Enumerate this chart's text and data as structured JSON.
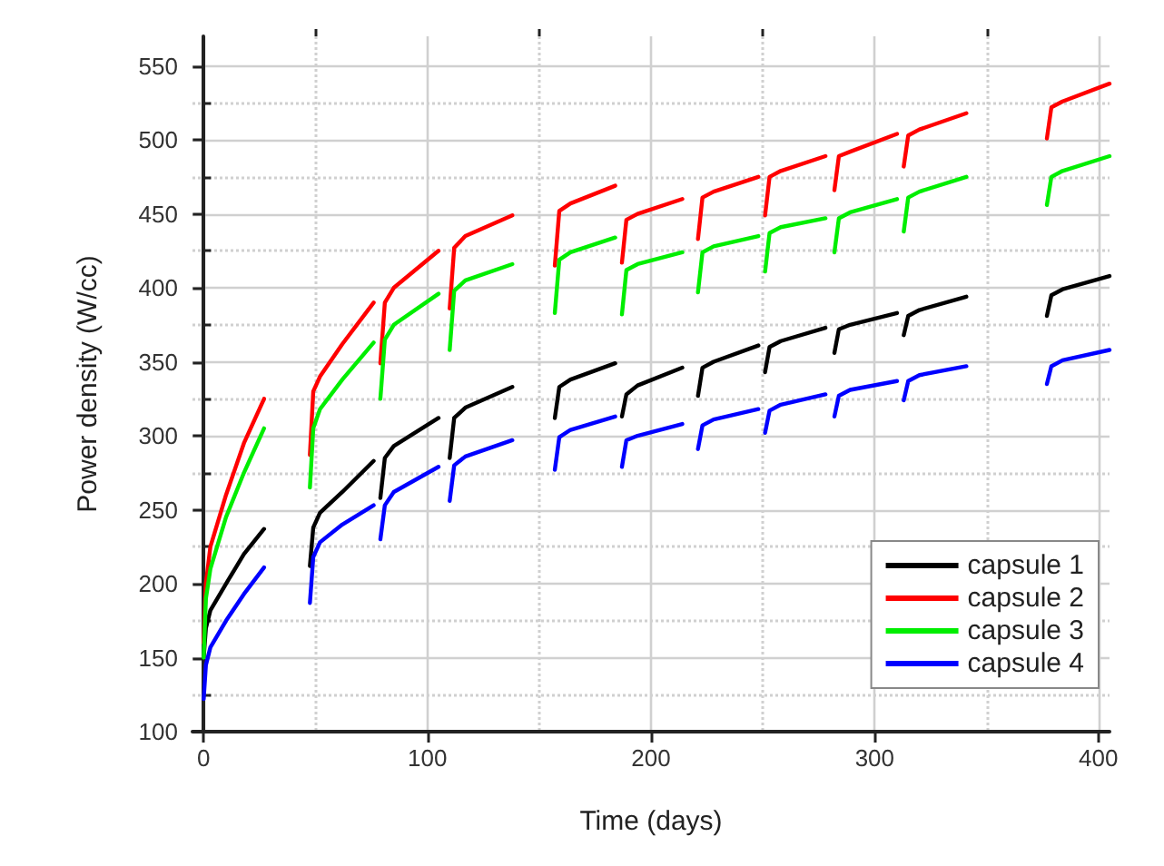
{
  "chart_data": {
    "type": "line",
    "xlabel": "Time (days)",
    "ylabel": "Power density (W/cc)",
    "x": [
      0,
      1,
      3,
      10,
      18,
      27,
      37,
      47.5,
      49,
      52,
      62,
      76,
      77.5,
      79,
      81,
      85,
      105,
      107.5,
      110,
      112,
      117,
      138,
      147,
      157,
      159,
      164,
      184,
      185.5,
      187,
      189,
      194,
      214,
      217.5,
      221,
      223,
      228,
      248,
      249.5,
      251,
      253,
      258,
      278,
      280,
      282,
      284,
      289,
      310,
      311.5,
      313,
      315,
      320,
      341,
      359,
      377,
      379,
      384,
      405
    ],
    "series": [
      {
        "name": "capsule 1",
        "color": "#000000",
        "values": [
          150,
          170,
          182,
          200,
          220,
          237,
          null,
          212,
          238,
          248,
          262,
          283,
          null,
          258,
          285,
          293,
          312,
          null,
          285,
          312,
          319,
          333,
          null,
          312,
          333,
          338,
          349,
          null,
          313,
          328,
          334,
          346,
          null,
          327,
          346,
          350,
          361,
          null,
          343,
          360,
          364,
          373,
          null,
          356,
          372,
          375,
          383,
          null,
          368,
          381,
          385,
          394,
          null,
          381,
          395,
          399,
          408
        ]
      },
      {
        "name": "capsule 2",
        "color": "#ff0000",
        "values": [
          160,
          200,
          225,
          260,
          295,
          325,
          null,
          287,
          330,
          340,
          362,
          390,
          null,
          349,
          390,
          400,
          425,
          null,
          386,
          427,
          435,
          449,
          null,
          415,
          452,
          457,
          469,
          null,
          417,
          446,
          450,
          460,
          null,
          433,
          461,
          465,
          475,
          null,
          449,
          475,
          479,
          489,
          null,
          466,
          489,
          492,
          504,
          null,
          482,
          503,
          507,
          518,
          null,
          501,
          522,
          526,
          538
        ]
      },
      {
        "name": "capsule 3",
        "color": "#00ee00",
        "values": [
          150,
          190,
          210,
          245,
          275,
          305,
          null,
          265,
          305,
          318,
          338,
          363,
          null,
          325,
          365,
          375,
          396,
          null,
          358,
          398,
          405,
          416,
          null,
          383,
          419,
          424,
          434,
          null,
          382,
          412,
          416,
          424,
          null,
          397,
          424,
          428,
          435,
          null,
          411,
          437,
          441,
          447,
          null,
          424,
          447,
          451,
          460,
          null,
          438,
          461,
          465,
          475,
          null,
          456,
          475,
          479,
          489
        ]
      },
      {
        "name": "capsule 4",
        "color": "#0000ff",
        "values": [
          122,
          145,
          157,
          175,
          193,
          211,
          null,
          187,
          218,
          228,
          240,
          253,
          null,
          230,
          253,
          262,
          279,
          null,
          256,
          280,
          286,
          297,
          null,
          277,
          299,
          304,
          313,
          null,
          279,
          297,
          300,
          308,
          null,
          291,
          307,
          311,
          318,
          null,
          302,
          317,
          321,
          328,
          null,
          313,
          327,
          331,
          337,
          null,
          324,
          337,
          341,
          347,
          null,
          335,
          347,
          351,
          358
        ]
      }
    ],
    "xlim": [
      -5,
      405
    ],
    "xticks": [
      0,
      {
        "value": 50,
        "label": null
      },
      100,
      {
        "value": 150,
        "label": null
      },
      200,
      {
        "value": 250,
        "label": null
      },
      300,
      {
        "value": 350,
        "label": null
      },
      400
    ],
    "ylim": [
      100,
      570
    ],
    "yticks": [
      100,
      {
        "value": 125,
        "label": null
      },
      150,
      {
        "value": 175,
        "label": null
      },
      200,
      {
        "value": 225,
        "label": null
      },
      250,
      {
        "value": 275,
        "label": null
      },
      300,
      {
        "value": 325,
        "label": null
      },
      350,
      {
        "value": 375,
        "label": null
      },
      400,
      {
        "value": 425,
        "label": null
      },
      450,
      {
        "value": 475,
        "label": null
      },
      500,
      {
        "value": 525,
        "label": null
      },
      550
    ],
    "grid": true,
    "legend": "bottom right",
    "marker": "none",
    "line_style": "solid"
  }
}
